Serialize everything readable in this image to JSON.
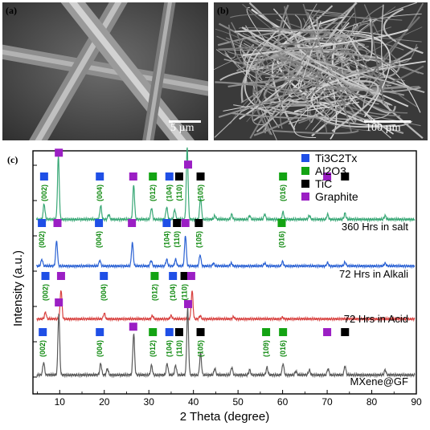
{
  "panels": {
    "a": {
      "letter": "(a)",
      "scale_label": "5 µm"
    },
    "b": {
      "letter": "(b)",
      "scale_label": "100 µm"
    },
    "c": {
      "letter": "(c)"
    }
  },
  "chart_data": {
    "type": "line",
    "xlabel": "2 Theta (degree)",
    "ylabel": "Intensity (a.u.)",
    "xlim": [
      4,
      90
    ],
    "xticks": [
      10,
      20,
      30,
      40,
      50,
      60,
      70,
      80,
      90
    ],
    "legend": {
      "placement": "top-right",
      "entries": [
        {
          "label": "Ti3C2Tx",
          "color": "#1f4fe6"
        },
        {
          "label": "Al2O3",
          "color": "#13a313"
        },
        {
          "label": "TiC",
          "color": "#000000"
        },
        {
          "label": "Graphite",
          "color": "#9b1fc4"
        }
      ]
    },
    "series": [
      {
        "name": "360 Hrs in salt",
        "color": "#3aa877",
        "peaks": [
          [
            6.5,
            0.25
          ],
          [
            9.7,
            1.0
          ],
          [
            19.2,
            0.22
          ],
          [
            21.0,
            0.08
          ],
          [
            26.6,
            0.55
          ],
          [
            30.6,
            0.18
          ],
          [
            34.0,
            0.2
          ],
          [
            35.8,
            0.16
          ],
          [
            38.6,
            1.15
          ],
          [
            41.6,
            0.35
          ],
          [
            44.8,
            0.06
          ],
          [
            48.6,
            0.08
          ],
          [
            52.6,
            0.06
          ],
          [
            56.0,
            0.08
          ],
          [
            60.1,
            0.12
          ],
          [
            66.0,
            0.06
          ],
          [
            70.1,
            0.08
          ],
          [
            74.0,
            0.1
          ],
          [
            83.0,
            0.06
          ]
        ],
        "markers": [
          {
            "x": 6.5,
            "color": "#1f4fe6",
            "miller": "(002)"
          },
          {
            "x": 9.8,
            "color": "#9b1fc4"
          },
          {
            "x": 19.0,
            "color": "#1f4fe6",
            "miller": "(004)"
          },
          {
            "x": 26.5,
            "color": "#9b1fc4"
          },
          {
            "x": 30.9,
            "color": "#13a313",
            "miller": "(012)"
          },
          {
            "x": 34.6,
            "color": "#1f4fe6",
            "miller": "(104)"
          },
          {
            "x": 36.8,
            "color": "#000000",
            "miller": "(110)"
          },
          {
            "x": 38.8,
            "color": "#9b1fc4"
          },
          {
            "x": 41.6,
            "color": "#000000",
            "miller": "(105)"
          },
          {
            "x": 60.1,
            "color": "#13a313",
            "miller": "(016)"
          },
          {
            "x": 70.0,
            "color": "#9b1fc4"
          },
          {
            "x": 74.0,
            "color": "#000000"
          }
        ]
      },
      {
        "name": "72 Hrs in Alkali",
        "color": "#2b62d4",
        "peaks": [
          [
            6.0,
            0.12
          ],
          [
            9.3,
            0.45
          ],
          [
            19.0,
            0.1
          ],
          [
            26.3,
            0.42
          ],
          [
            30.5,
            0.1
          ],
          [
            34.0,
            0.12
          ],
          [
            36.0,
            0.12
          ],
          [
            38.2,
            0.55
          ],
          [
            41.5,
            0.2
          ],
          [
            44.5,
            0.05
          ],
          [
            48.5,
            0.05
          ],
          [
            56.0,
            0.05
          ],
          [
            60.0,
            0.08
          ],
          [
            70.1,
            0.06
          ],
          [
            74.0,
            0.07
          ],
          [
            83.0,
            0.05
          ]
        ],
        "markers": [
          {
            "x": 6.0,
            "color": "#1f4fe6",
            "miller": "(002)"
          },
          {
            "x": 9.5,
            "color": "#9b1fc4"
          },
          {
            "x": 18.8,
            "color": "#1f4fe6",
            "miller": "(004)"
          },
          {
            "x": 26.2,
            "color": "#9b1fc4"
          },
          {
            "x": 34.0,
            "color": "#1f4fe6",
            "miller": "(104)"
          },
          {
            "x": 36.3,
            "color": "#000000",
            "miller": "(110)"
          },
          {
            "x": 38.2,
            "color": "#9b1fc4"
          },
          {
            "x": 41.2,
            "color": "#000000",
            "miller": "(105)"
          },
          {
            "x": 59.8,
            "color": "#13a313",
            "miller": "(016)"
          }
        ]
      },
      {
        "name": "72 Hrs in Acid",
        "color": "#d8413f",
        "peaks": [
          [
            6.8,
            0.12
          ],
          [
            10.3,
            0.52
          ],
          [
            20.0,
            0.1
          ],
          [
            30.8,
            0.06
          ],
          [
            35.0,
            0.06
          ],
          [
            39.7,
            0.5
          ],
          [
            41.5,
            0.06
          ],
          [
            49.0,
            0.04
          ],
          [
            60.0,
            0.03
          ]
        ],
        "markers": [
          {
            "x": 6.8,
            "color": "#1f4fe6",
            "miller": "(002)"
          },
          {
            "x": 10.3,
            "color": "#9b1fc4"
          },
          {
            "x": 19.9,
            "color": "#1f4fe6",
            "miller": "(004)"
          },
          {
            "x": 31.3,
            "color": "#13a313",
            "miller": "(012)"
          },
          {
            "x": 35.4,
            "color": "#1f4fe6",
            "miller": "(104)"
          },
          {
            "x": 38.0,
            "color": "#000000",
            "miller": "(110)"
          },
          {
            "x": 39.5,
            "color": "#9b1fc4"
          }
        ]
      },
      {
        "name": "MXene@GF",
        "color": "#5a5a5a",
        "peaks": [
          [
            6.4,
            0.2
          ],
          [
            9.8,
            0.95
          ],
          [
            19.2,
            0.18
          ],
          [
            20.7,
            0.1
          ],
          [
            26.6,
            0.65
          ],
          [
            30.6,
            0.15
          ],
          [
            34.1,
            0.18
          ],
          [
            36.0,
            0.15
          ],
          [
            38.7,
            1.05
          ],
          [
            41.6,
            0.35
          ],
          [
            44.8,
            0.1
          ],
          [
            48.6,
            0.12
          ],
          [
            52.6,
            0.08
          ],
          [
            56.5,
            0.12
          ],
          [
            60.1,
            0.18
          ],
          [
            63.0,
            0.06
          ],
          [
            66.0,
            0.08
          ],
          [
            70.2,
            0.1
          ],
          [
            74.0,
            0.14
          ],
          [
            83.0,
            0.08
          ]
        ],
        "markers": [
          {
            "x": 6.2,
            "color": "#1f4fe6",
            "miller": "(002)"
          },
          {
            "x": 9.8,
            "color": "#9b1fc4"
          },
          {
            "x": 19.0,
            "color": "#1f4fe6",
            "miller": "(004)"
          },
          {
            "x": 26.5,
            "color": "#9b1fc4"
          },
          {
            "x": 30.9,
            "color": "#13a313",
            "miller": "(012)"
          },
          {
            "x": 34.6,
            "color": "#1f4fe6",
            "miller": "(104)"
          },
          {
            "x": 36.8,
            "color": "#000000",
            "miller": "(110)"
          },
          {
            "x": 38.8,
            "color": "#9b1fc4"
          },
          {
            "x": 41.6,
            "color": "#000000",
            "miller": "(105)"
          },
          {
            "x": 56.3,
            "color": "#13a313",
            "miller": "(109)"
          },
          {
            "x": 60.1,
            "color": "#13a313",
            "miller": "(016)"
          },
          {
            "x": 70.0,
            "color": "#9b1fc4"
          },
          {
            "x": 74.0,
            "color": "#000000"
          }
        ]
      }
    ]
  }
}
